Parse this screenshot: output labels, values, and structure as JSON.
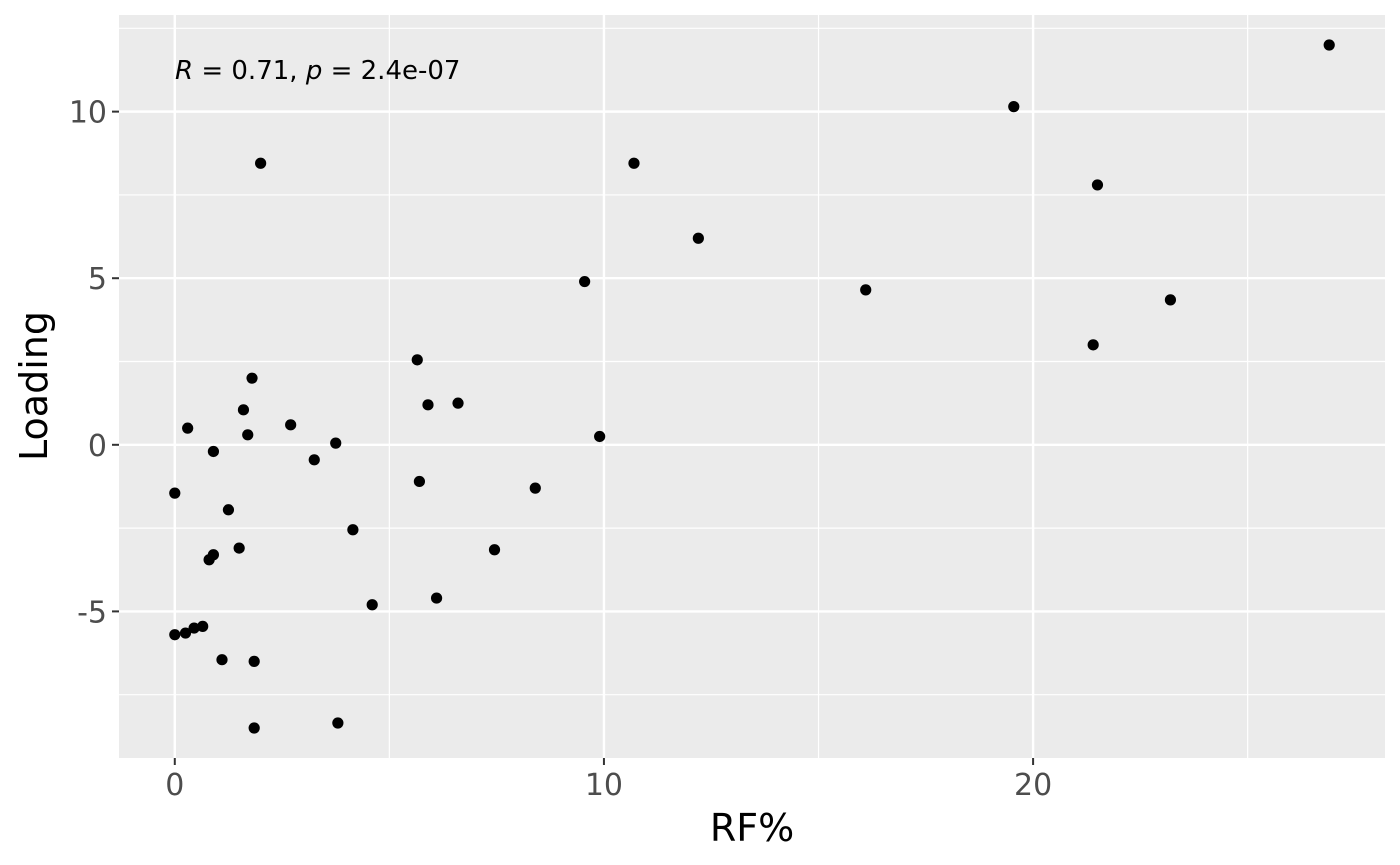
{
  "chart_data": {
    "type": "scatter",
    "title": "",
    "xlabel": "RF%",
    "ylabel": "Loading",
    "xlim": [
      -1.3,
      28.2
    ],
    "ylim": [
      -9.4,
      12.9
    ],
    "x_ticks": [
      0,
      10,
      20
    ],
    "x_tick_labels": [
      "0",
      "10",
      "20"
    ],
    "y_ticks": [
      -5,
      0,
      5,
      10
    ],
    "y_tick_labels": [
      "-5",
      "0",
      "5",
      "10"
    ],
    "grid": true,
    "annotation": {
      "r_symbol": "R",
      "r_text": " = 0.71, ",
      "p_symbol": "p",
      "p_text": " = 2.4e-07"
    },
    "colors": {
      "panel": "#ebebeb",
      "grid": "#ffffff",
      "point": "#000000"
    },
    "points": [
      {
        "x": 26.9,
        "y": 12.0
      },
      {
        "x": 19.55,
        "y": 10.15
      },
      {
        "x": 21.5,
        "y": 7.8
      },
      {
        "x": 10.7,
        "y": 8.45
      },
      {
        "x": 2.0,
        "y": 8.45
      },
      {
        "x": 12.2,
        "y": 6.2
      },
      {
        "x": 9.55,
        "y": 4.9
      },
      {
        "x": 16.1,
        "y": 4.65
      },
      {
        "x": 23.2,
        "y": 4.35
      },
      {
        "x": 21.4,
        "y": 3.0
      },
      {
        "x": 5.65,
        "y": 2.55
      },
      {
        "x": 1.8,
        "y": 2.0
      },
      {
        "x": 5.9,
        "y": 1.2
      },
      {
        "x": 6.6,
        "y": 1.25
      },
      {
        "x": 1.6,
        "y": 1.05
      },
      {
        "x": 2.7,
        "y": 0.6
      },
      {
        "x": 0.3,
        "y": 0.5
      },
      {
        "x": 1.7,
        "y": 0.3
      },
      {
        "x": 9.9,
        "y": 0.25
      },
      {
        "x": 3.75,
        "y": 0.05
      },
      {
        "x": 0.9,
        "y": -0.2
      },
      {
        "x": 3.25,
        "y": -0.45
      },
      {
        "x": 5.7,
        "y": -1.1
      },
      {
        "x": 8.4,
        "y": -1.3
      },
      {
        "x": 0.0,
        "y": -1.45
      },
      {
        "x": 1.25,
        "y": -1.95
      },
      {
        "x": 4.15,
        "y": -2.55
      },
      {
        "x": 1.5,
        "y": -3.1
      },
      {
        "x": 7.45,
        "y": -3.15
      },
      {
        "x": 0.9,
        "y": -3.3
      },
      {
        "x": 0.8,
        "y": -3.45
      },
      {
        "x": 6.1,
        "y": -4.6
      },
      {
        "x": 4.6,
        "y": -4.8
      },
      {
        "x": 0.65,
        "y": -5.45
      },
      {
        "x": 0.45,
        "y": -5.5
      },
      {
        "x": 0.25,
        "y": -5.65
      },
      {
        "x": 0.0,
        "y": -5.7
      },
      {
        "x": 1.1,
        "y": -6.45
      },
      {
        "x": 1.85,
        "y": -6.5
      },
      {
        "x": 3.8,
        "y": -8.35
      },
      {
        "x": 1.85,
        "y": -8.5
      }
    ]
  }
}
